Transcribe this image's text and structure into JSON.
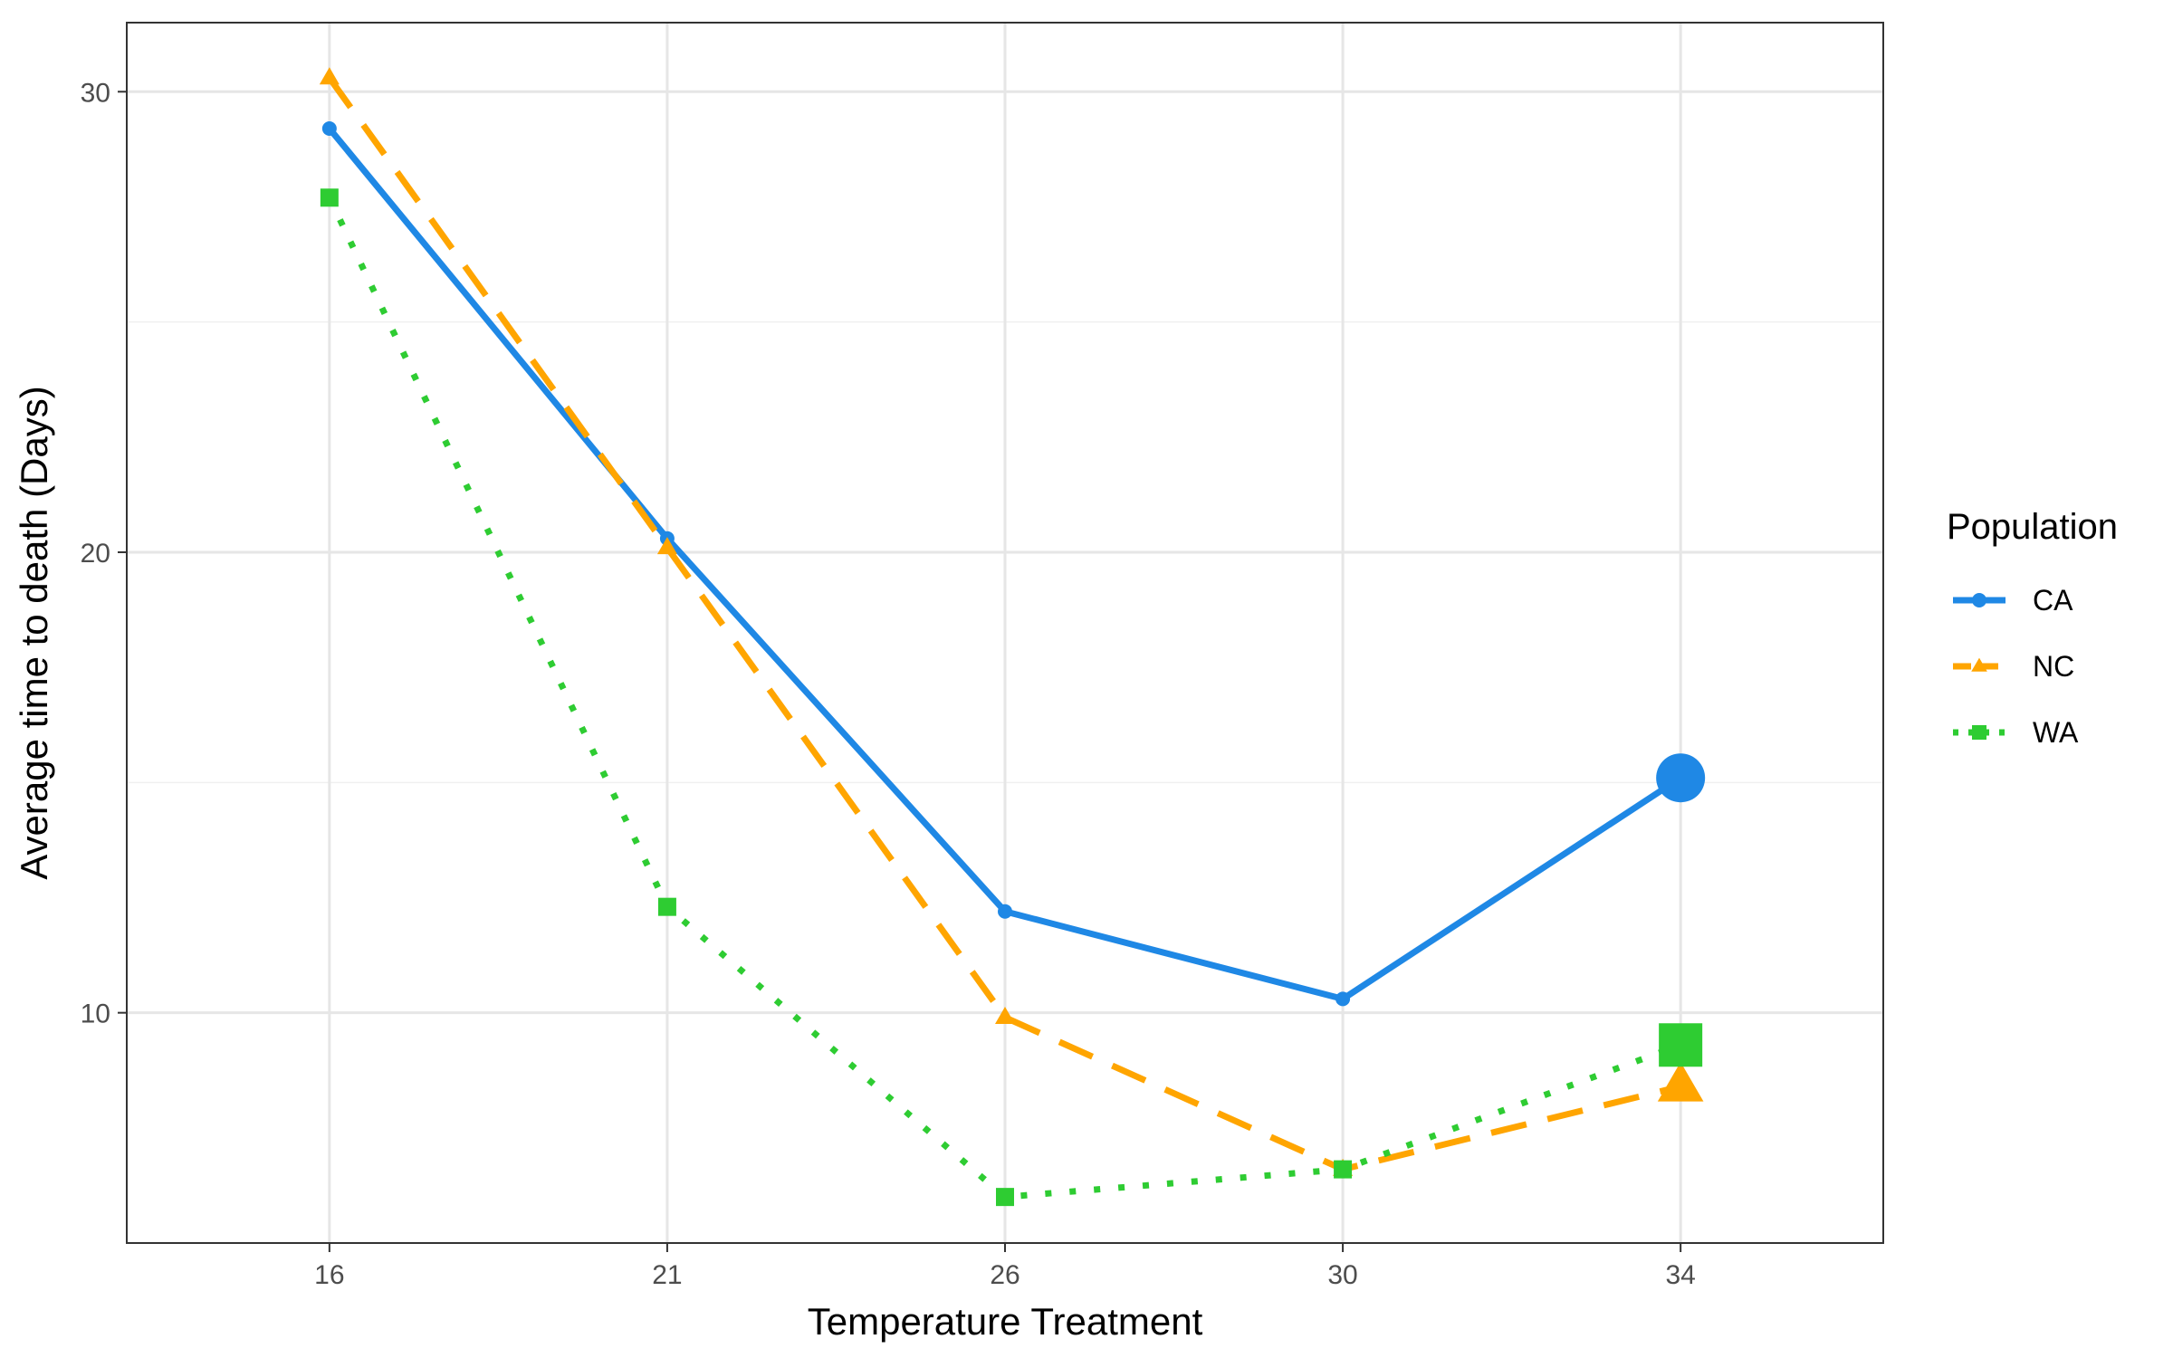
{
  "chart_data": {
    "type": "line",
    "xlabel": "Temperature Treatment",
    "ylabel": "Average time to death (Days)",
    "categories": [
      "16",
      "21",
      "26",
      "30",
      "34"
    ],
    "ylim": [
      5,
      31.5
    ],
    "yticks": [
      10,
      20,
      30
    ],
    "grid": true,
    "legend": {
      "title": "Population",
      "position": "right"
    },
    "series": [
      {
        "name": "CA",
        "values": [
          29.2,
          20.3,
          12.2,
          10.3,
          15.1
        ],
        "color": "#1f88e5",
        "line": "solid",
        "marker": "circle",
        "emphasized_last": true
      },
      {
        "name": "NC",
        "values": [
          30.3,
          20.1,
          9.9,
          6.6,
          8.4
        ],
        "color": "#ffa500",
        "line": "dashed",
        "marker": "triangle",
        "emphasized_last": true
      },
      {
        "name": "WA",
        "values": [
          27.7,
          12.3,
          6.0,
          6.6,
          9.3
        ],
        "color": "#2ecc32",
        "line": "dotted",
        "marker": "square",
        "emphasized_last": true
      }
    ]
  }
}
